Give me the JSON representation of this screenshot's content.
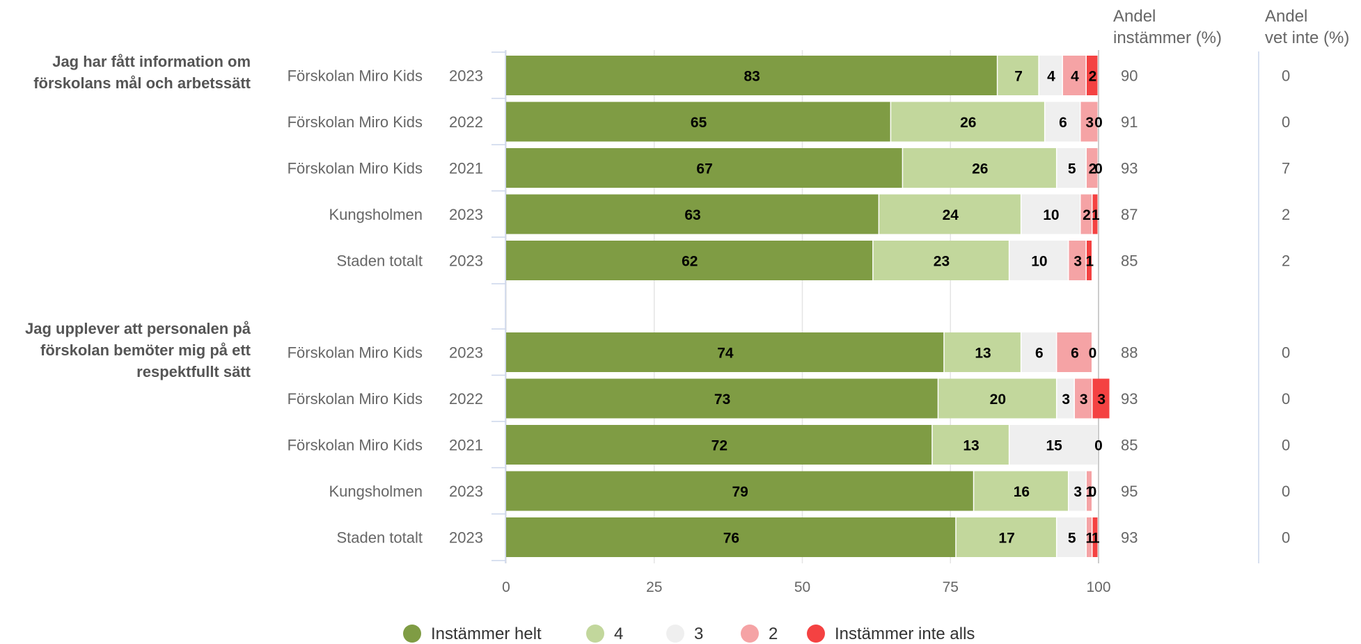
{
  "columns": {
    "agree_header": [
      "Andel",
      "instämmer (%)"
    ],
    "dontknow_header": [
      "Andel",
      "vet inte (%)"
    ]
  },
  "legend": [
    "Instämmer helt",
    "4",
    "3",
    "2",
    "Instämmer inte alls"
  ],
  "colors": [
    "#7f9c44",
    "#c2d79c",
    "#efefef",
    "#f5a3a5",
    "#f44242"
  ],
  "chart_data": {
    "type": "bar",
    "orientation": "horizontal",
    "stacked": true,
    "xlim": [
      0,
      100
    ],
    "xticks": [
      "0",
      "25",
      "50",
      "75",
      "100"
    ],
    "series_names": [
      "Instämmer helt",
      "4",
      "3",
      "2",
      "Instämmer inte alls"
    ],
    "groups": [
      {
        "question": "Jag har fått information om förskolans mål och arbetssätt",
        "question_lines": [
          "Jag har fått information om",
          "förskolans mål och arbetssätt"
        ],
        "rows": [
          {
            "name": "Förskolan Miro Kids",
            "year": "2023",
            "values": [
              83,
              7,
              4,
              4,
              2
            ],
            "agree": "90",
            "dontknow": "0"
          },
          {
            "name": "Förskolan Miro Kids",
            "year": "2022",
            "values": [
              65,
              26,
              6,
              3,
              0
            ],
            "agree": "91",
            "dontknow": "0"
          },
          {
            "name": "Förskolan Miro Kids",
            "year": "2021",
            "values": [
              67,
              26,
              5,
              2,
              0
            ],
            "agree": "93",
            "dontknow": "7"
          },
          {
            "name": "Kungsholmen",
            "year": "2023",
            "values": [
              63,
              24,
              10,
              2,
              1
            ],
            "agree": "87",
            "dontknow": "2"
          },
          {
            "name": "Staden totalt",
            "year": "2023",
            "values": [
              62,
              23,
              10,
              3,
              1
            ],
            "agree": "85",
            "dontknow": "2"
          }
        ]
      },
      {
        "question": "Jag upplever att personalen på förskolan bemöter mig på ett respektfullt sätt",
        "question_lines": [
          "Jag upplever att personalen på",
          "förskolan bemöter mig på ett",
          "respektfullt sätt"
        ],
        "rows": [
          {
            "name": "Förskolan Miro Kids",
            "year": "2023",
            "values": [
              74,
              13,
              6,
              6,
              0
            ],
            "agree": "88",
            "dontknow": "0"
          },
          {
            "name": "Förskolan Miro Kids",
            "year": "2022",
            "values": [
              73,
              20,
              3,
              3,
              3
            ],
            "agree": "93",
            "dontknow": "0"
          },
          {
            "name": "Förskolan Miro Kids",
            "year": "2021",
            "values": [
              72,
              13,
              15,
              0,
              0
            ],
            "agree": "85",
            "dontknow": "0"
          },
          {
            "name": "Kungsholmen",
            "year": "2023",
            "values": [
              79,
              16,
              3,
              1,
              0
            ],
            "agree": "95",
            "dontknow": "0"
          },
          {
            "name": "Staden totalt",
            "year": "2023",
            "values": [
              76,
              17,
              5,
              1,
              1
            ],
            "agree": "93",
            "dontknow": "0"
          }
        ]
      }
    ]
  }
}
